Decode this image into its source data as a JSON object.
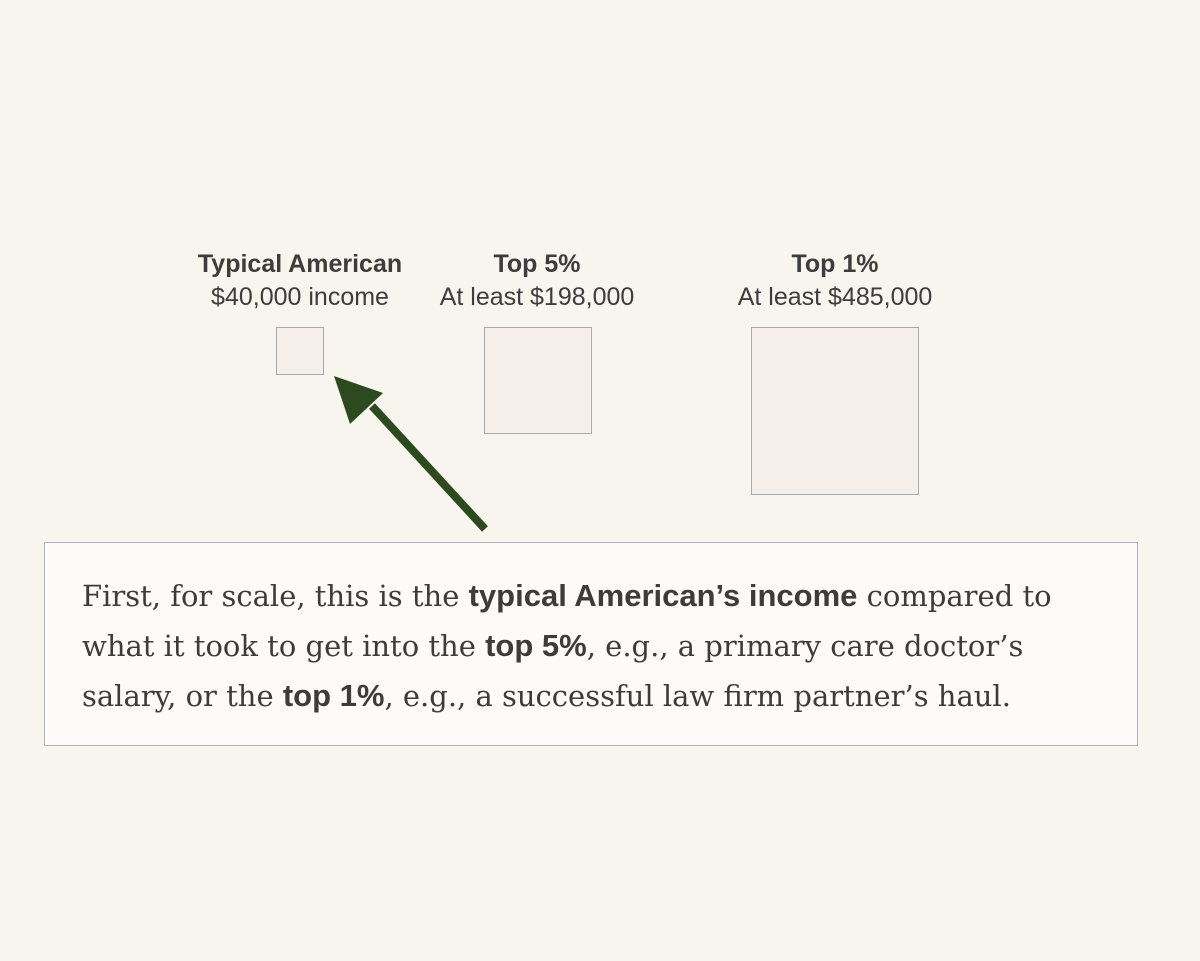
{
  "chart_data": {
    "type": "area",
    "groups": [
      {
        "name": "Typical American",
        "label": "$40,000 income",
        "value": 40000
      },
      {
        "name": "Top 5%",
        "label": "At least $198,000",
        "value": 198000
      },
      {
        "name": "Top 1%",
        "label": "At least $485,000",
        "value": 485000
      }
    ]
  },
  "callout": {
    "t1": "First, for scale, this is the ",
    "b1": "typical American’s income",
    "t2": " compared to what it took to get into the ",
    "b2": "top 5%",
    "t3": ", e.g., a primary care doctor’s salary, or the ",
    "b3": "top 1%",
    "t4": ", e.g., a successful law firm partner’s haul."
  },
  "colors": {
    "background": "#f8f4ee",
    "box_fill": "#f4efe8",
    "box_border": "#aaaaaa",
    "arrow": "#2d4a1e"
  }
}
